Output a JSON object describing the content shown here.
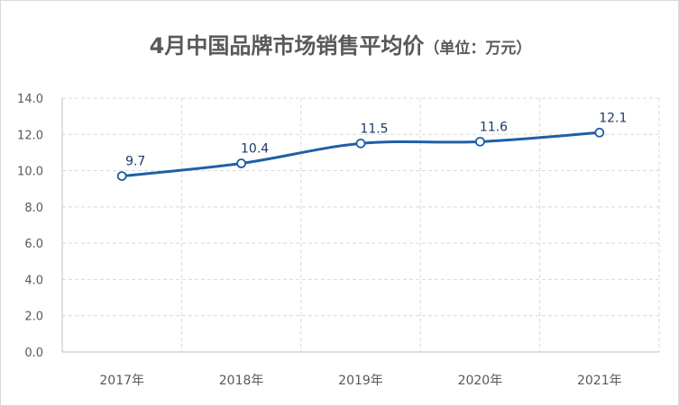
{
  "chart_data": {
    "type": "line",
    "title": "4月中国品牌市场销售平均价",
    "subtitle": "（单位：万元）",
    "xlabel": "",
    "ylabel": "",
    "categories": [
      "2017年",
      "2018年",
      "2019年",
      "2020年",
      "2021年"
    ],
    "series": [
      {
        "values": [
          9.7,
          10.4,
          11.5,
          11.6,
          12.1
        ],
        "color": "#1f5fa6"
      }
    ],
    "ylim": [
      0,
      14
    ],
    "yticks": [
      "0.0",
      "2.0",
      "4.0",
      "6.0",
      "8.0",
      "10.0",
      "12.0",
      "14.0"
    ],
    "data_labels": [
      "9.7",
      "10.4",
      "11.5",
      "11.6",
      "12.1"
    ],
    "grid": true,
    "legend": "none",
    "smooth": true
  }
}
